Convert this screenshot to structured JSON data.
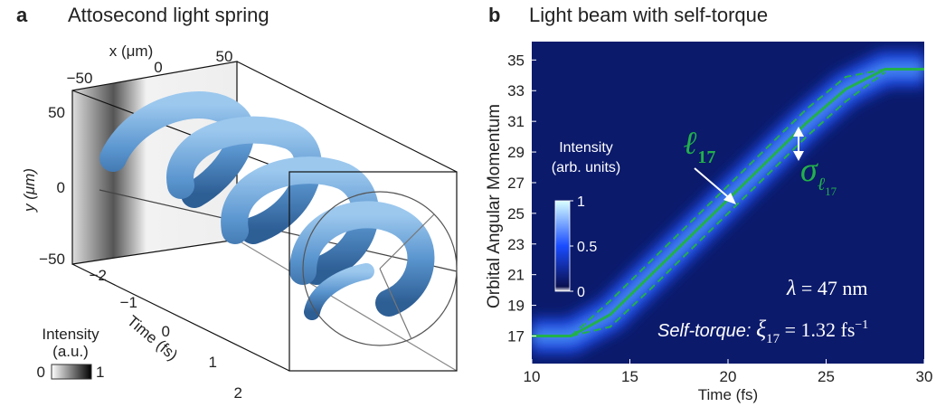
{
  "panel_a": {
    "panel_label": "a",
    "title": "Attosecond light spring",
    "x_axis": {
      "label": "x (μm)",
      "ticks": [
        "−50",
        "0",
        "50"
      ]
    },
    "y_axis": {
      "label": "y (μm)",
      "ticks": [
        "50",
        "0",
        "−50"
      ]
    },
    "time_axis": {
      "label": "Time (fs)",
      "ticks": [
        "−2",
        "−1",
        "0",
        "1",
        "2"
      ]
    },
    "colorbar": {
      "label_line1": "Intensity",
      "label_line2": "(a.u.)",
      "min_label": "0",
      "max_label": "1"
    }
  },
  "chart_data": {
    "type": "line",
    "panel_label": "b",
    "title": "Light beam with self-torque",
    "xlabel": "Time (fs)",
    "ylabel": "Orbital Angular Momentum",
    "background": "#0b1a6b",
    "x": [
      10,
      12,
      14,
      16,
      18,
      20,
      22,
      24,
      26,
      28,
      30
    ],
    "series": [
      {
        "color": "#22b04b",
        "style": "solid",
        "values": [
          17,
          17,
          18.4,
          20.9,
          23.4,
          25.9,
          28.4,
          30.9,
          33.1,
          34.4,
          34.4
        ]
      },
      {
        "color": "#22b04b",
        "style": "dashed",
        "values": [
          null,
          17,
          19.3,
          21.8,
          24.3,
          26.8,
          29.3,
          31.8,
          33.9,
          34.4,
          null
        ]
      },
      {
        "color": "#22b04b",
        "style": "dashed",
        "values": [
          null,
          17,
          17.6,
          20,
          22.5,
          25,
          27.5,
          30,
          32.3,
          34.2,
          null
        ]
      }
    ],
    "xlim": [
      10,
      30
    ],
    "xticks": [
      10,
      15,
      20,
      25,
      30
    ],
    "ylim": [
      15.2,
      36.2
    ],
    "yticks": [
      17,
      19,
      21,
      23,
      25,
      27,
      29,
      31,
      33,
      35
    ],
    "colorbar": {
      "label_line1": "Intensity",
      "label_line2": "(arb. units)",
      "clim": [
        0,
        1
      ],
      "ticks": [
        1,
        0.5,
        0
      ]
    },
    "annotations": {
      "mean_label": {
        "symbol": "ℓ",
        "subscript": "17"
      },
      "width_label": {
        "symbol": "σ",
        "subscript": "ℓ",
        "subsubscript": "17"
      },
      "wavelength": {
        "symbol": "λ",
        "rest": " = 47  nm"
      },
      "torque": {
        "prefix": "Self-torque: ",
        "symbol": "ξ",
        "subscript": "17",
        "rest": " = 1.32  fs",
        "superscript": "−1"
      }
    }
  }
}
